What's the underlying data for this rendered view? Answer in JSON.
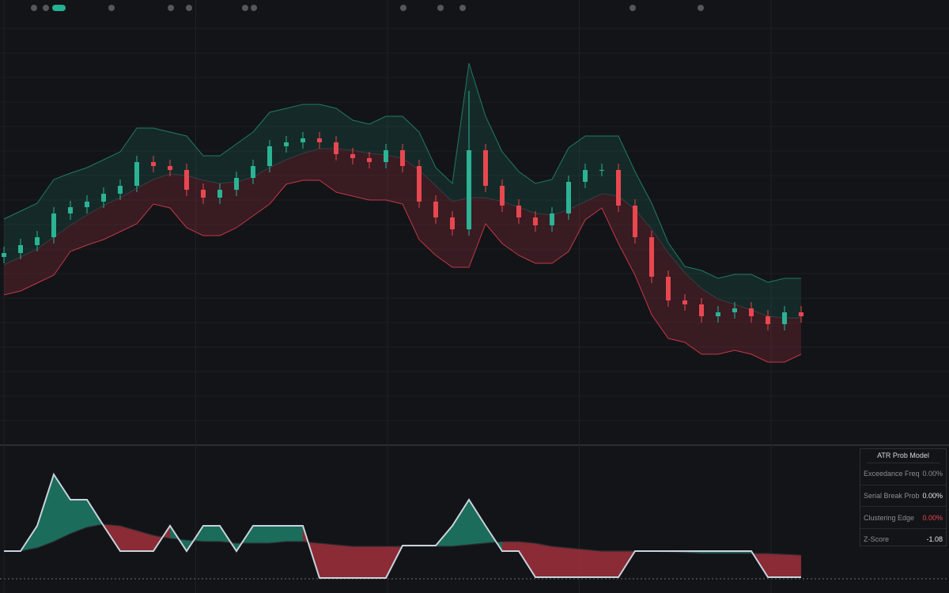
{
  "chart_data": [
    {
      "type": "candlestick",
      "ylim": [
        0,
        560
      ],
      "grid": true,
      "up_color": "#2bb394",
      "down_color": "#e8474f",
      "upper_color": "#1e7a64",
      "lower_color": "#c23847",
      "open": [
        235,
        240,
        250,
        260,
        290,
        298,
        305,
        315,
        325,
        355,
        350,
        345,
        320,
        310,
        320,
        335,
        350,
        375,
        380,
        385,
        380,
        365,
        360,
        355,
        370,
        350,
        305,
        285,
        270,
        370,
        325,
        300,
        285,
        275,
        290,
        330,
        345,
        345,
        300,
        260,
        210,
        180,
        175,
        160,
        165,
        170,
        160,
        150,
        165
      ],
      "high": [
        248,
        258,
        268,
        298,
        306,
        313,
        323,
        333,
        363,
        363,
        358,
        353,
        328,
        328,
        343,
        358,
        383,
        388,
        393,
        393,
        388,
        373,
        368,
        378,
        378,
        358,
        313,
        293,
        445,
        378,
        333,
        308,
        293,
        298,
        338,
        353,
        353,
        353,
        308,
        268,
        218,
        188,
        183,
        173,
        178,
        178,
        168,
        173,
        173
      ],
      "low": [
        227,
        232,
        242,
        252,
        282,
        290,
        297,
        307,
        317,
        342,
        337,
        312,
        302,
        302,
        312,
        327,
        342,
        367,
        372,
        372,
        357,
        352,
        347,
        347,
        342,
        297,
        277,
        262,
        262,
        317,
        292,
        277,
        267,
        267,
        282,
        322,
        337,
        292,
        252,
        202,
        172,
        167,
        152,
        152,
        157,
        152,
        142,
        142,
        152
      ],
      "close": [
        240,
        250,
        260,
        290,
        298,
        305,
        315,
        325,
        355,
        350,
        345,
        320,
        310,
        320,
        335,
        350,
        375,
        380,
        385,
        380,
        365,
        360,
        355,
        370,
        350,
        305,
        285,
        270,
        370,
        325,
        300,
        285,
        275,
        290,
        330,
        345,
        345,
        300,
        260,
        210,
        180,
        175,
        160,
        165,
        170,
        160,
        150,
        165,
        160
      ],
      "upper": [
        283,
        293,
        303,
        333,
        341,
        348,
        358,
        368,
        398,
        398,
        393,
        388,
        363,
        363,
        378,
        393,
        418,
        423,
        428,
        428,
        423,
        408,
        403,
        413,
        413,
        393,
        348,
        328,
        480,
        413,
        368,
        343,
        328,
        333,
        373,
        388,
        388,
        388,
        343,
        303,
        253,
        223,
        218,
        208,
        213,
        213,
        203,
        208,
        208
      ],
      "basis": [
        225,
        235,
        245,
        260,
        275,
        288,
        300,
        310,
        322,
        333,
        340,
        338,
        332,
        328,
        330,
        336,
        348,
        358,
        366,
        372,
        372,
        370,
        366,
        364,
        360,
        345,
        325,
        305,
        310,
        310,
        305,
        298,
        290,
        288,
        295,
        305,
        315,
        312,
        295,
        270,
        240,
        215,
        195,
        182,
        175,
        168,
        160,
        158,
        158
      ],
      "lower": [
        187,
        192,
        202,
        212,
        242,
        250,
        257,
        267,
        277,
        302,
        297,
        272,
        262,
        262,
        272,
        287,
        302,
        327,
        332,
        332,
        317,
        312,
        307,
        307,
        302,
        257,
        237,
        222,
        222,
        277,
        252,
        237,
        227,
        227,
        242,
        282,
        297,
        252,
        212,
        162,
        132,
        127,
        112,
        112,
        117,
        112,
        102,
        102,
        112
      ]
    },
    {
      "type": "oscillator",
      "ylim": [
        0,
        135
      ],
      "line_color": "#c9d3dd",
      "up_color": "#1f8a72",
      "down_color": "#b3333f",
      "signal": [
        36,
        36,
        68,
        133,
        101,
        101,
        68,
        36,
        36,
        36,
        68,
        36,
        68,
        68,
        36,
        68,
        68,
        68,
        68,
        2,
        2,
        2,
        2,
        2,
        43,
        43,
        43,
        68,
        101,
        68,
        36,
        36,
        3,
        3,
        3,
        3,
        3,
        3,
        36,
        36,
        36,
        36,
        36,
        36,
        36,
        36,
        3,
        3,
        3
      ],
      "slow": [
        36,
        36,
        40,
        48,
        58,
        66,
        70,
        68,
        62,
        56,
        52,
        50,
        48,
        48,
        46,
        46,
        46,
        48,
        48,
        46,
        44,
        42,
        42,
        42,
        42,
        42,
        42,
        42,
        44,
        46,
        48,
        48,
        46,
        42,
        40,
        38,
        36,
        36,
        36,
        36,
        35,
        34,
        33,
        33,
        33,
        33,
        33,
        32,
        31
      ]
    }
  ],
  "table": {
    "title": "ATR Prob Model",
    "rows": [
      {
        "label": "Exceedance Freq",
        "value": "0.00%",
        "color": "#8b8e95"
      },
      {
        "label": "Serial Break Prob",
        "value": "0.00%",
        "color": "#e6e7ea"
      },
      {
        "label": "Clustering Edge",
        "value": "0.00%",
        "color": "#e8474f"
      },
      {
        "label": "Z-Score",
        "value": "-1.08",
        "color": "#e6e7ea"
      }
    ]
  }
}
